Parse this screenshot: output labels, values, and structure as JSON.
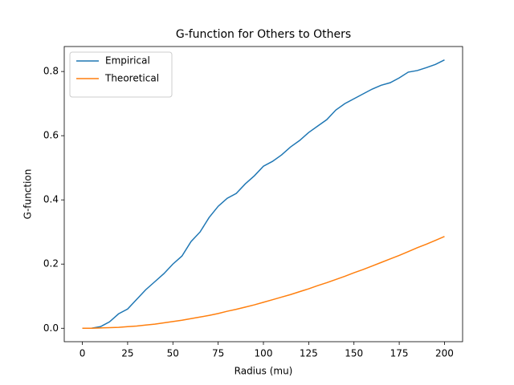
{
  "chart_data": {
    "type": "line",
    "title": "G-function for Others to Others",
    "x_label": "Radius (mu)",
    "y_label": "G-function",
    "x": [
      0,
      5,
      10,
      15,
      20,
      25,
      30,
      35,
      40,
      45,
      50,
      55,
      60,
      65,
      70,
      75,
      80,
      85,
      90,
      95,
      100,
      105,
      110,
      115,
      120,
      125,
      130,
      135,
      140,
      145,
      150,
      155,
      160,
      165,
      170,
      175,
      180,
      185,
      190,
      195,
      200
    ],
    "series": [
      {
        "name": "Empirical",
        "color": "#1f77b4",
        "values": [
          0,
          0,
          0.005,
          0.02,
          0.045,
          0.06,
          0.09,
          0.12,
          0.145,
          0.17,
          0.2,
          0.225,
          0.27,
          0.3,
          0.345,
          0.38,
          0.405,
          0.42,
          0.45,
          0.475,
          0.505,
          0.52,
          0.54,
          0.565,
          0.585,
          0.61,
          0.63,
          0.65,
          0.68,
          0.7,
          0.715,
          0.73,
          0.745,
          0.757,
          0.765,
          0.78,
          0.798,
          0.803,
          0.812,
          0.822,
          0.836
        ]
      },
      {
        "name": "Theoretical",
        "color": "#ff7f0e",
        "values": [
          0,
          0,
          0.001,
          0.002,
          0.003,
          0.005,
          0.007,
          0.01,
          0.013,
          0.017,
          0.021,
          0.025,
          0.03,
          0.035,
          0.04,
          0.046,
          0.053,
          0.059,
          0.066,
          0.073,
          0.081,
          0.089,
          0.097,
          0.105,
          0.114,
          0.123,
          0.133,
          0.142,
          0.152,
          0.162,
          0.173,
          0.183,
          0.194,
          0.205,
          0.216,
          0.227,
          0.239,
          0.251,
          0.262,
          0.274,
          0.286
        ]
      }
    ],
    "xlim": [
      -10,
      210
    ],
    "ylim": [
      -0.0418,
      0.8778
    ],
    "xticks": [
      0,
      25,
      50,
      75,
      100,
      125,
      150,
      175,
      200
    ],
    "yticks": [
      {
        "value": 0,
        "label": "0.0"
      },
      0.2,
      0.4,
      0.6,
      0.8
    ],
    "legend": "upper left",
    "grid": false
  }
}
